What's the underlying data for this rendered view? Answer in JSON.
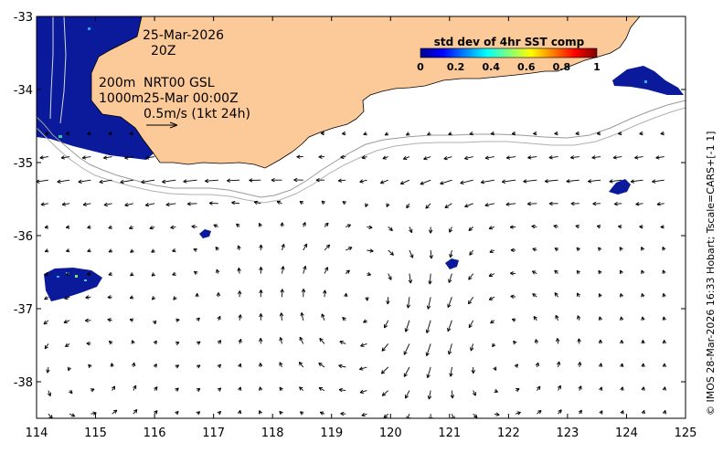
{
  "chart_data": {
    "type": "map",
    "x_range": [
      114,
      125
    ],
    "y_range": [
      -38.5,
      -33
    ],
    "x_ticks": [
      "114",
      "115",
      "116",
      "117",
      "118",
      "119",
      "120",
      "121",
      "122",
      "123",
      "124",
      "125"
    ],
    "y_ticks": [
      "-33",
      "-34",
      "-35",
      "-36",
      "-37",
      "-38"
    ],
    "annotations": {
      "date": "25-Mar-2026",
      "time": "20Z",
      "depth_200": "200m",
      "depth_1000": "1000m",
      "product": "NRT00 GSL",
      "product_time": "25-Mar 00:00Z",
      "scale_vector": "0.5m/s (1kt 24h)"
    },
    "colorbar": {
      "title": "std dev of 4hr SST comp",
      "ticks": [
        "0",
        "0.2",
        "0.4",
        "0.6",
        "0.8",
        "1"
      ],
      "range": [
        0,
        1
      ]
    },
    "credit": "© IMOS 28-Mar-2026 16:33 Hobart; Tscale=CARS+[-1 1]",
    "sst_patches_lonlat": [
      {
        "name": "west-coast-patch",
        "lon": [
          114.0,
          115.6
        ],
        "lat": [
          -35.0,
          -33.0
        ]
      },
      {
        "name": "east-patch",
        "lon": [
          123.9,
          124.7
        ],
        "lat": [
          -34.1,
          -33.8
        ]
      },
      {
        "name": "east-patch-small",
        "lon": [
          123.8,
          124.1
        ],
        "lat": [
          -35.4,
          -35.2
        ]
      },
      {
        "name": "south-west-patch",
        "lon": [
          114.1,
          114.8
        ],
        "lat": [
          -37.0,
          -36.5
        ]
      },
      {
        "name": "center-patch",
        "lon": [
          120.9,
          121.1
        ],
        "lat": [
          -36.4,
          -36.3
        ]
      },
      {
        "name": "small-patch-117",
        "lon": [
          116.8,
          117.0
        ],
        "lat": [
          -36.0,
          -35.9
        ]
      }
    ]
  },
  "colors": {
    "land": "#FCC999",
    "text": "#000000",
    "patch": "#0a1a9a"
  }
}
